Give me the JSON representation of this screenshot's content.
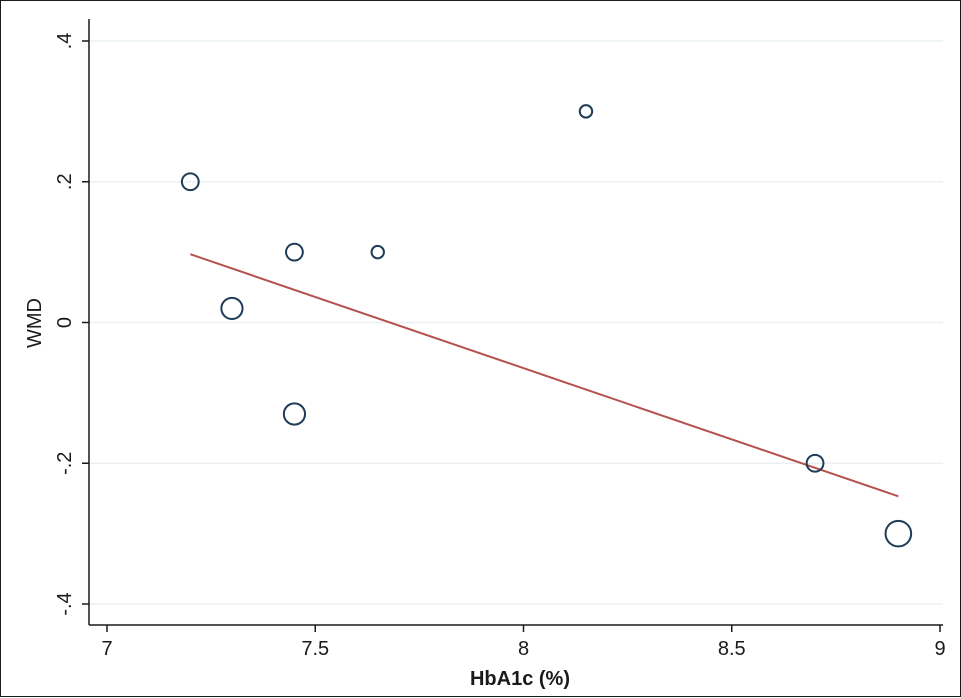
{
  "chart_data": {
    "type": "scatter",
    "title": "",
    "xlabel": "HbA1c (%)",
    "ylabel": "WMD",
    "xlim": [
      7,
      9
    ],
    "ylim": [
      -0.4,
      0.4
    ],
    "x_ticks": [
      {
        "value": 7,
        "label": "7"
      },
      {
        "value": 7.5,
        "label": "7.5"
      },
      {
        "value": 8,
        "label": "8"
      },
      {
        "value": 8.5,
        "label": "8.5"
      },
      {
        "value": 9,
        "label": "9"
      }
    ],
    "y_ticks": [
      {
        "value": -0.4,
        "label": "-.4"
      },
      {
        "value": -0.2,
        "label": "-.2"
      },
      {
        "value": 0,
        "label": "0"
      },
      {
        "value": 0.2,
        "label": ".2"
      },
      {
        "value": 0.4,
        "label": ".4"
      }
    ],
    "grid": "horizontal",
    "points": [
      {
        "x": 7.2,
        "y": 0.2,
        "weight": 2
      },
      {
        "x": 7.3,
        "y": 0.02,
        "weight": 3
      },
      {
        "x": 7.45,
        "y": 0.1,
        "weight": 2
      },
      {
        "x": 7.45,
        "y": -0.13,
        "weight": 3
      },
      {
        "x": 7.65,
        "y": 0.1,
        "weight": 1
      },
      {
        "x": 8.15,
        "y": 0.3,
        "weight": 1
      },
      {
        "x": 8.7,
        "y": -0.2,
        "weight": 2
      },
      {
        "x": 8.9,
        "y": -0.3,
        "weight": 4
      }
    ],
    "fit_line": {
      "x": [
        7.2,
        8.9
      ],
      "y": [
        0.097,
        -0.247
      ],
      "color": "#b5514e"
    },
    "marker_color": "#1f3b57",
    "grid_color": "#eaf0f3",
    "axis_color": "#1a1a1a"
  }
}
